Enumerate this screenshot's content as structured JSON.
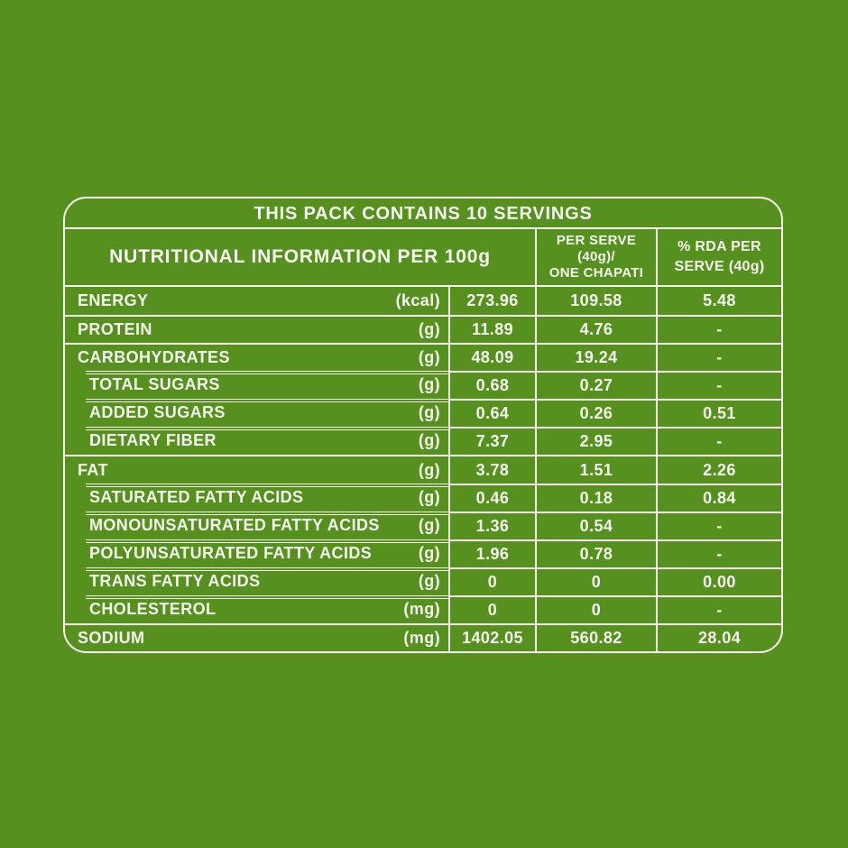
{
  "colors": {
    "background": "#569120",
    "line": "#f4f7ee",
    "text": "#f4f7ee"
  },
  "pack_header": "THIS PACK CONTAINS 10 SERVINGS",
  "table": {
    "header": {
      "main": "NUTRITIONAL INFORMATION PER 100g",
      "per_serve": "PER SERVE\n(40g)/\nONE CHAPATI",
      "rda": "% RDA PER\nSERVE (40g)"
    },
    "rows": [
      {
        "label": "ENERGY",
        "unit": "(kcal)",
        "per100": "273.96",
        "per_serve": "109.58",
        "rda": "5.48",
        "sub": false
      },
      {
        "label": "PROTEIN",
        "unit": "(g)",
        "per100": "11.89",
        "per_serve": "4.76",
        "rda": "-",
        "sub": false
      },
      {
        "label": "CARBOHYDRATES",
        "unit": "(g)",
        "per100": "48.09",
        "per_serve": "19.24",
        "rda": "-",
        "sub": false
      },
      {
        "label": "TOTAL SUGARS",
        "unit": "(g)",
        "per100": "0.68",
        "per_serve": "0.27",
        "rda": "-",
        "sub": true
      },
      {
        "label": "ADDED SUGARS",
        "unit": "(g)",
        "per100": "0.64",
        "per_serve": "0.26",
        "rda": "0.51",
        "sub": true
      },
      {
        "label": "DIETARY FIBER",
        "unit": "(g)",
        "per100": "7.37",
        "per_serve": "2.95",
        "rda": "-",
        "sub": true
      },
      {
        "label": "FAT",
        "unit": "(g)",
        "per100": "3.78",
        "per_serve": "1.51",
        "rda": "2.26",
        "sub": false
      },
      {
        "label": "SATURATED FATTY ACIDS",
        "unit": "(g)",
        "per100": "0.46",
        "per_serve": "0.18",
        "rda": "0.84",
        "sub": true
      },
      {
        "label": "MONOUNSATURATED FATTY ACIDS",
        "unit": "(g)",
        "per100": "1.36",
        "per_serve": "0.54",
        "rda": "-",
        "sub": true
      },
      {
        "label": "POLYUNSATURATED FATTY ACIDS",
        "unit": "(g)",
        "per100": "1.96",
        "per_serve": "0.78",
        "rda": "-",
        "sub": true
      },
      {
        "label": "TRANS FATTY ACIDS",
        "unit": "(g)",
        "per100": "0",
        "per_serve": "0",
        "rda": "0.00",
        "sub": true
      },
      {
        "label": "CHOLESTEROL",
        "unit": "(mg)",
        "per100": "0",
        "per_serve": "0",
        "rda": "-",
        "sub": true
      },
      {
        "label": "SODIUM",
        "unit": "(mg)",
        "per100": "1402.05",
        "per_serve": "560.82",
        "rda": "28.04",
        "sub": false
      }
    ]
  }
}
